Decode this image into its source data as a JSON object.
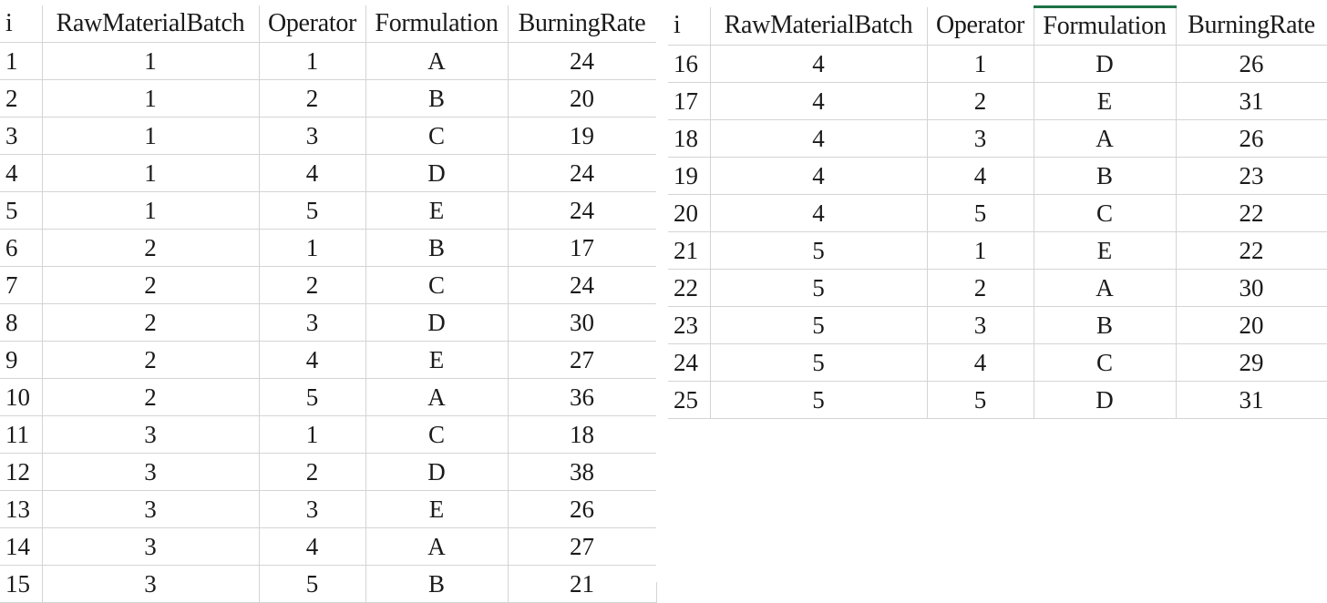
{
  "left_sheet": {
    "headers": [
      "i",
      "RawMaterialBatch",
      "Operator",
      "Formulation",
      "BurningRate"
    ],
    "rows": [
      [
        "1",
        "1",
        "1",
        "A",
        "24"
      ],
      [
        "2",
        "1",
        "2",
        "B",
        "20"
      ],
      [
        "3",
        "1",
        "3",
        "C",
        "19"
      ],
      [
        "4",
        "1",
        "4",
        "D",
        "24"
      ],
      [
        "5",
        "1",
        "5",
        "E",
        "24"
      ],
      [
        "6",
        "2",
        "1",
        "B",
        "17"
      ],
      [
        "7",
        "2",
        "2",
        "C",
        "24"
      ],
      [
        "8",
        "2",
        "3",
        "D",
        "30"
      ],
      [
        "9",
        "2",
        "4",
        "E",
        "27"
      ],
      [
        "10",
        "2",
        "5",
        "A",
        "36"
      ],
      [
        "11",
        "3",
        "1",
        "C",
        "18"
      ],
      [
        "12",
        "3",
        "2",
        "D",
        "38"
      ],
      [
        "13",
        "3",
        "3",
        "E",
        "26"
      ],
      [
        "14",
        "3",
        "4",
        "A",
        "27"
      ],
      [
        "15",
        "3",
        "5",
        "B",
        "21"
      ]
    ]
  },
  "right_sheet": {
    "headers": [
      "i",
      "RawMaterialBatch",
      "Operator",
      "Formulation",
      "BurningRate"
    ],
    "selected_column": "Formulation",
    "selected_color": "#1e7145",
    "rows": [
      [
        "16",
        "4",
        "1",
        "D",
        "26"
      ],
      [
        "17",
        "4",
        "2",
        "E",
        "31"
      ],
      [
        "18",
        "4",
        "3",
        "A",
        "26"
      ],
      [
        "19",
        "4",
        "4",
        "B",
        "23"
      ],
      [
        "20",
        "4",
        "5",
        "C",
        "22"
      ],
      [
        "21",
        "5",
        "1",
        "E",
        "22"
      ],
      [
        "22",
        "5",
        "2",
        "A",
        "30"
      ],
      [
        "23",
        "5",
        "3",
        "B",
        "20"
      ],
      [
        "24",
        "5",
        "4",
        "C",
        "29"
      ],
      [
        "25",
        "5",
        "5",
        "D",
        "31"
      ]
    ]
  }
}
